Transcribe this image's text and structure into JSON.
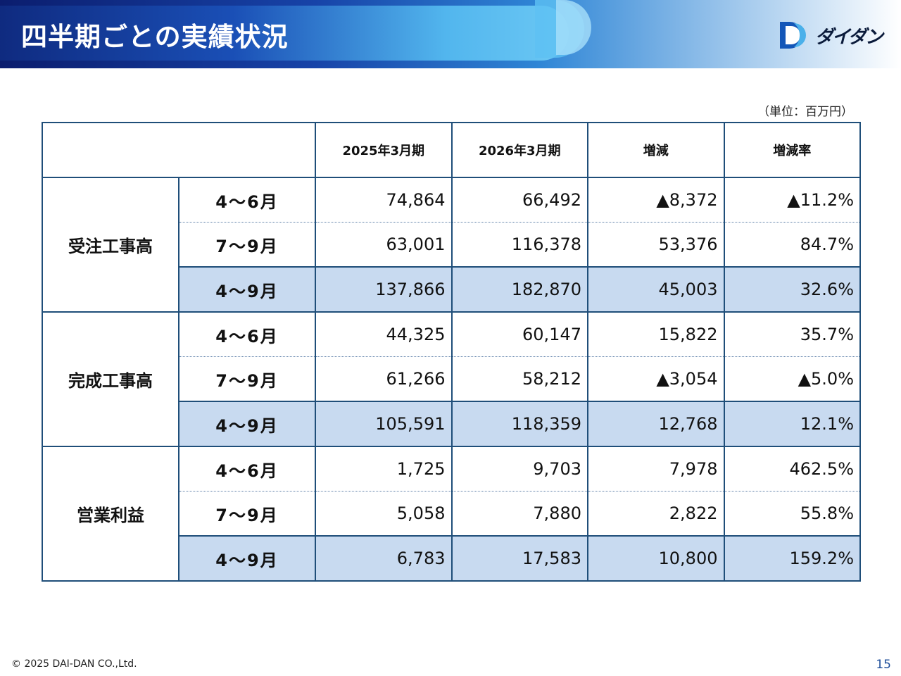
{
  "header": {
    "title": "四半期ごとの実績状況"
  },
  "logo": {
    "text": "ダイダン"
  },
  "unit_label": "（単位：百万円）",
  "table": {
    "columns": [
      "",
      "2025年3月期",
      "2026年3月期",
      "増減",
      "増減率"
    ],
    "groups": [
      {
        "name": "受注工事高",
        "rows": [
          {
            "period": "4～6月",
            "prev": "74,864",
            "curr": "66,492",
            "diff": "▲8,372",
            "rate": "▲11.2%"
          },
          {
            "period": "7～9月",
            "prev": "63,001",
            "curr": "116,378",
            "diff": "53,376",
            "rate": "84.7%"
          },
          {
            "period": "4～9月",
            "prev": "137,866",
            "curr": "182,870",
            "diff": "45,003",
            "rate": "32.6%"
          }
        ]
      },
      {
        "name": "完成工事高",
        "rows": [
          {
            "period": "4～6月",
            "prev": "44,325",
            "curr": "60,147",
            "diff": "15,822",
            "rate": "35.7%"
          },
          {
            "period": "7～9月",
            "prev": "61,266",
            "curr": "58,212",
            "diff": "▲3,054",
            "rate": "▲5.0%"
          },
          {
            "period": "4～9月",
            "prev": "105,591",
            "curr": "118,359",
            "diff": "12,768",
            "rate": "12.1%"
          }
        ]
      },
      {
        "name": "営業利益",
        "rows": [
          {
            "period": "4～6月",
            "prev": "1,725",
            "curr": "9,703",
            "diff": "7,978",
            "rate": "462.5%"
          },
          {
            "period": "7～9月",
            "prev": "5,058",
            "curr": "7,880",
            "diff": "2,822",
            "rate": "55.8%"
          },
          {
            "period": "4～9月",
            "prev": "6,783",
            "curr": "17,583",
            "diff": "10,800",
            "rate": "159.2%"
          }
        ]
      }
    ]
  },
  "footer": {
    "copyright": "© 2025 DAI-DAN CO.,Ltd.",
    "page_number": "15"
  },
  "colors": {
    "header_dark": "#0b1d6e",
    "accent": "#2f86d6",
    "total_row": "#c8daf0",
    "border": "#1f4e79"
  }
}
